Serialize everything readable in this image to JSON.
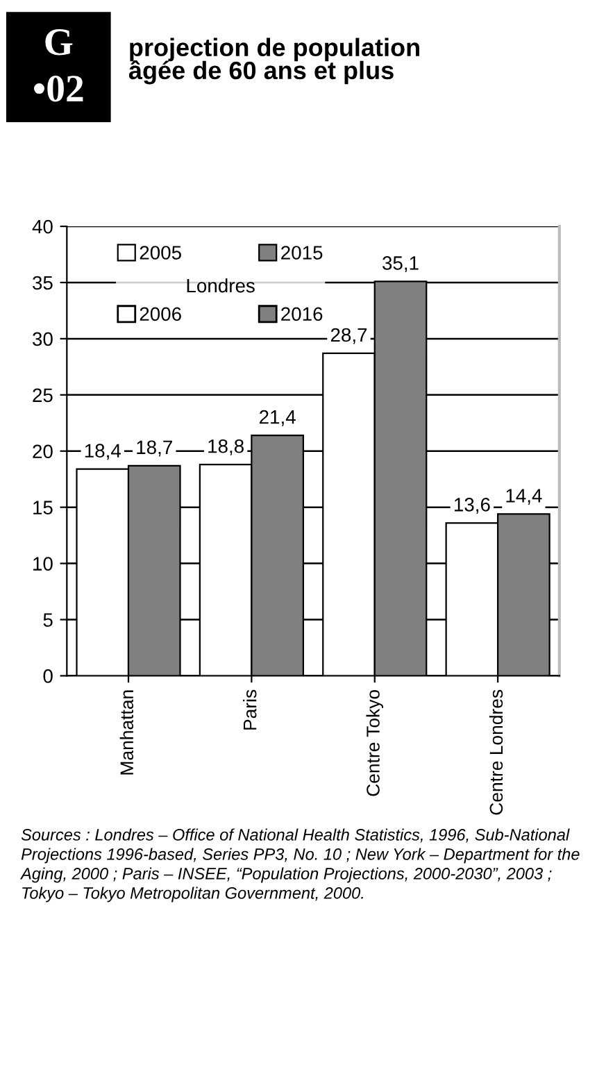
{
  "chart_data": {
    "type": "bar",
    "title": "projection de population\nâgée de 60 ans et plus",
    "categories": [
      "Manhattan",
      "Paris",
      "Centre Tokyo",
      "Centre Londres"
    ],
    "series": [
      {
        "name": "2005",
        "color": "#ffffff",
        "values": [
          18.4,
          18.8,
          28.7,
          13.6
        ],
        "value_labels": [
          "18,4",
          "18,8",
          "28,7",
          "13,6"
        ]
      },
      {
        "name": "2015",
        "color": "#808080",
        "values": [
          18.7,
          21.4,
          35.1,
          14.4
        ],
        "value_labels": [
          "18,7",
          "21,4",
          "35,1",
          "14,4"
        ]
      }
    ],
    "legend_title": "Londres",
    "annotations": [
      "2006",
      "2016",
      "G",
      "•02",
      "Sources : Londres – Office of National Health Statistics, 1996, Sub-National Projections 1996-based, Series PP3, No. 10 ; New York – Department for the Aging, 2000 ; Paris – INSEE, “Population Projections, 2000-2030”, 2003 ; Tokyo – Tokyo Metropolitan Government, 2000."
    ],
    "ylim": [
      0,
      40
    ],
    "yticks": [
      0,
      5,
      10,
      15,
      20,
      25,
      30,
      35,
      40
    ],
    "grid": "y",
    "legend": "top left"
  }
}
